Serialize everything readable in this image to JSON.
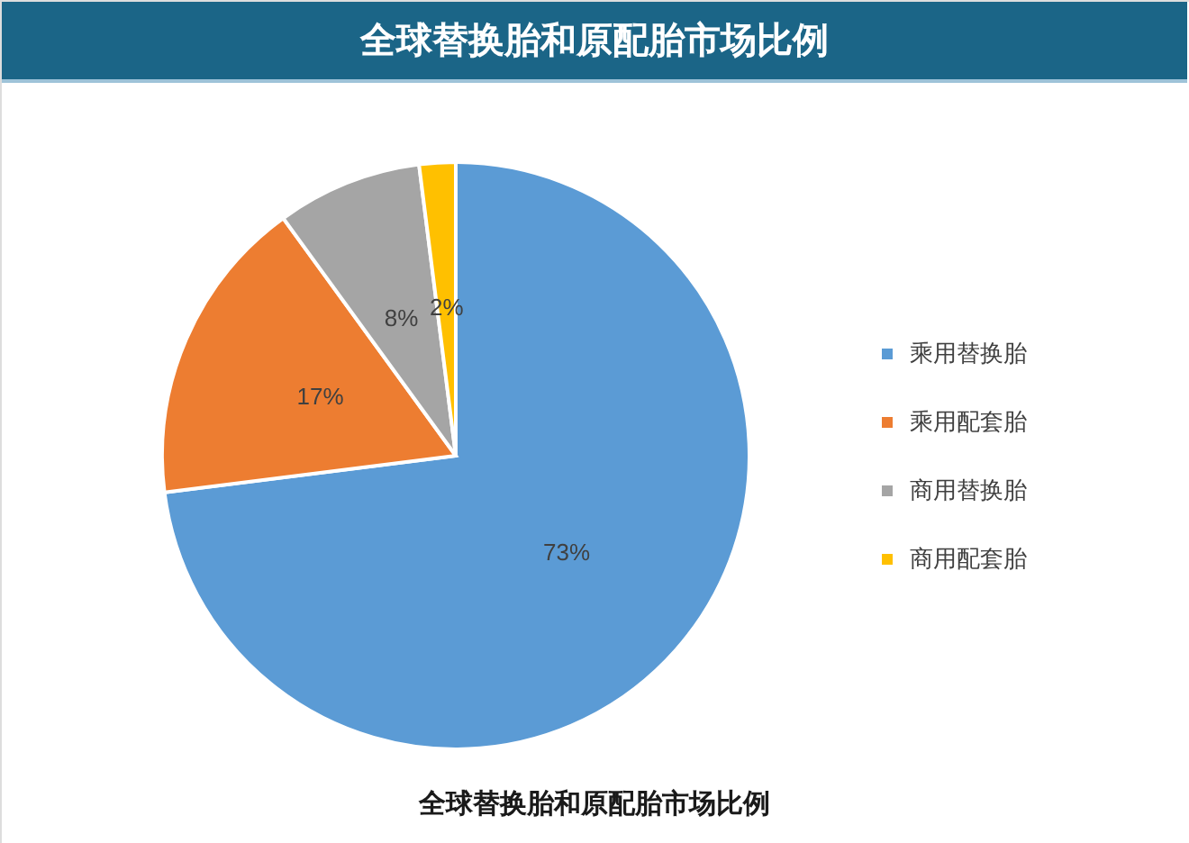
{
  "chart_data": {
    "type": "pie",
    "title": "全球替换胎和原配胎市场比例",
    "categories": [
      "乘用替换胎",
      "乘用配套胎",
      "商用替换胎",
      "商用配套胎"
    ],
    "values": [
      73,
      17,
      8,
      2
    ],
    "colors": [
      "#5b9bd5",
      "#ed7d31",
      "#a5a5a5",
      "#ffc000"
    ],
    "value_labels": [
      "73%",
      "17%",
      "8%",
      "2%"
    ],
    "legend": "right",
    "annotations": [
      "全球替换胎和原配胎市场比例"
    ]
  }
}
